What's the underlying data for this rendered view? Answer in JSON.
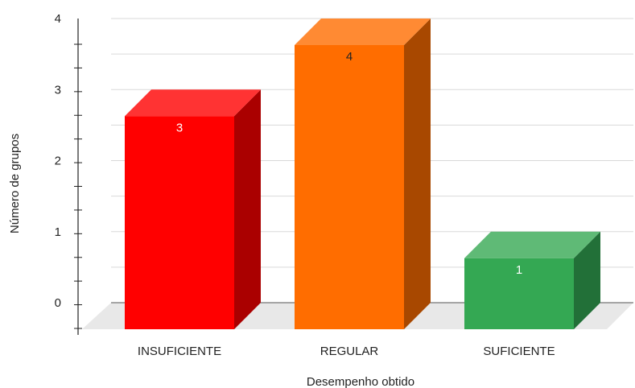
{
  "chart_data": {
    "type": "bar",
    "style": "3d-column",
    "categories": [
      "INSUFICIENTE",
      "REGULAR",
      "SUFICIENTE"
    ],
    "values": [
      3,
      4,
      1
    ],
    "xlabel": "Desempenho obtido",
    "ylabel": "Número de grupos",
    "ylim": [
      0,
      4
    ],
    "yticks": [
      0,
      1,
      2,
      3,
      4
    ],
    "grid": true,
    "legend": "none",
    "colors": {
      "bars": [
        {
          "front": "#ff0000",
          "top": "#ff3333",
          "side": "#aa0000",
          "label": "#ffffff"
        },
        {
          "front": "#ff6d00",
          "top": "#ff8a33",
          "side": "#a84800",
          "label": "#222222"
        },
        {
          "front": "#34a853",
          "top": "#5fba76",
          "side": "#227038",
          "label": "#ffffff"
        }
      ],
      "grid": "#d9d9d9",
      "floor": "#e8e8e8",
      "axis": "#222222"
    }
  }
}
